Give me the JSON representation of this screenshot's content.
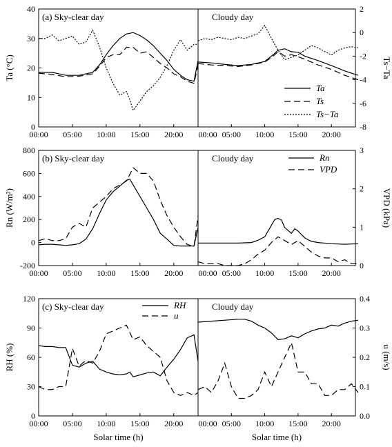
{
  "figure": {
    "xlabel": "Solar time (h)",
    "panels": [
      {
        "id": "a",
        "left_title": "(a) Sky-clear day",
        "right_title": "Cloudy day",
        "ylabel_left": "Ta (°C)",
        "ylabel_right": "Ts−Ta",
        "yticks_left": [
          "0",
          "10",
          "20",
          "30",
          "40"
        ],
        "yticks_right": [
          "-8",
          "-6",
          "-4",
          "-2",
          "0",
          "2"
        ],
        "xticks_left": [
          "00:00",
          "05:00",
          "10:00",
          "15:00",
          "20:00"
        ],
        "xticks_right": [
          "00:00",
          "05:00",
          "10:00",
          "15:00",
          "20:00"
        ],
        "legend": [
          "Ta",
          "Ts",
          "Ts−Ta"
        ]
      },
      {
        "id": "b",
        "left_title": "(b)  Sky-clear day",
        "right_title": "Cloudy day",
        "ylabel_left": "Rn (W/m²)",
        "ylabel_right": "VPD (kPa)",
        "yticks_left": [
          "-200",
          "0",
          "200",
          "400",
          "600",
          "800"
        ],
        "yticks_right": [
          "0",
          "1",
          "2",
          "3"
        ],
        "xticks_left": [
          "00:00",
          "05:00",
          "10:00",
          "15:00",
          "20:00"
        ],
        "xticks_right": [
          "00:00",
          "05:00",
          "10:00",
          "15:00",
          "20:00"
        ],
        "legend": [
          "Rn",
          "VPD"
        ]
      },
      {
        "id": "c",
        "left_title": "(c) Sky-clear day",
        "right_title": "Cloudy day",
        "ylabel_left": "RH (%)",
        "ylabel_right": "u (m/s)",
        "yticks_left": [
          "0",
          "30",
          "60",
          "90",
          "120"
        ],
        "yticks_right": [
          "0.0",
          "0.1",
          "0.2",
          "0.3",
          "0.4"
        ],
        "xticks_left": [
          "00:00",
          "05:00",
          "10:00",
          "15:00",
          "20:00"
        ],
        "xticks_right": [
          "00:00",
          "05:00",
          "10:00",
          "15:00",
          "20:00"
        ],
        "legend": [
          "RH",
          "u"
        ]
      }
    ]
  },
  "chart_data": [
    {
      "panel": "a",
      "type": "line",
      "x_unit": "solar hour",
      "left_axis": {
        "label": "Ta (°C)",
        "ylim": [
          0,
          40
        ]
      },
      "right_axis": {
        "label": "Ts−Ta",
        "ylim": [
          -8,
          2
        ]
      },
      "clear": {
        "Ta": {
          "axis": "left",
          "style": "solid",
          "x": [
            0,
            2,
            4,
            6,
            8,
            9,
            10,
            11,
            12,
            13,
            14,
            15,
            16,
            17,
            18,
            19,
            20,
            21,
            22,
            23,
            23.6
          ],
          "y": [
            18.5,
            18.5,
            17.5,
            17.5,
            18.5,
            21,
            24.5,
            27.5,
            30,
            31.5,
            32,
            31,
            29.5,
            27.5,
            25,
            22.5,
            19.5,
            17.5,
            16,
            15.5,
            22.5
          ]
        },
        "Ts": {
          "axis": "left",
          "style": "dashed",
          "x": [
            0,
            2,
            4,
            6,
            8,
            9,
            10,
            11,
            12,
            13,
            14,
            15,
            16,
            17,
            18,
            19,
            20,
            21,
            22,
            23,
            23.6
          ],
          "y": [
            18.2,
            17.8,
            17,
            17.2,
            18,
            20.5,
            23.5,
            24.5,
            24.5,
            27,
            27,
            25,
            25.5,
            23.5,
            21.5,
            20,
            18,
            17,
            15.5,
            14.8,
            21
          ]
        },
        "Ts_minus_Ta": {
          "axis": "right",
          "style": "dotted",
          "x": [
            0,
            1,
            2,
            3,
            4,
            5,
            6,
            7,
            8,
            9,
            10,
            11,
            12,
            13,
            13.5,
            14,
            15,
            16,
            17,
            18,
            19,
            20,
            21,
            22,
            23,
            23.6
          ],
          "y": [
            -0.5,
            -0.5,
            -0.2,
            -0.7,
            -0.5,
            -0.3,
            -1.0,
            -0.8,
            0.2,
            -1.2,
            -3.0,
            -4.3,
            -5.3,
            -5.0,
            -5.7,
            -6.6,
            -5.8,
            -5.0,
            -4.5,
            -3.8,
            -2.8,
            -1.5,
            -0.6,
            -1.5,
            -1.0,
            -1.0
          ]
        }
      },
      "cloudy": {
        "Ta": {
          "axis": "left",
          "style": "solid",
          "x": [
            0,
            2,
            4,
            6,
            8,
            10,
            11,
            12,
            13,
            14,
            15,
            16,
            18,
            20,
            22,
            24
          ],
          "y": [
            22,
            21.7,
            21.2,
            20.8,
            21.2,
            22.2,
            24,
            26,
            26.5,
            25.5,
            25.3,
            24,
            22.5,
            20.8,
            19,
            17.5
          ]
        },
        "Ts": {
          "axis": "left",
          "style": "dashed",
          "x": [
            0,
            2,
            4,
            6,
            8,
            10,
            11,
            12,
            13,
            14,
            15,
            16,
            18,
            20,
            22,
            24
          ],
          "y": [
            21.5,
            21,
            20.8,
            20.5,
            21,
            22,
            23.5,
            25.5,
            24,
            24.5,
            23.8,
            23,
            21,
            19.5,
            17.5,
            16
          ]
        },
        "Ts_minus_Ta": {
          "axis": "right",
          "style": "dotted",
          "x": [
            0,
            1,
            2,
            3,
            4,
            5,
            6,
            7,
            8,
            9,
            10,
            11,
            12,
            13,
            14,
            15,
            16,
            17,
            18,
            19,
            20,
            21,
            22,
            23,
            24
          ],
          "y": [
            -0.7,
            -0.5,
            -0.6,
            -0.4,
            -0.5,
            -0.6,
            -0.4,
            -0.5,
            -0.3,
            -0.1,
            0.6,
            -0.5,
            -1.5,
            -2.3,
            -2.1,
            -1.9,
            -1.5,
            -1.1,
            -1.3,
            -1.6,
            -1.9,
            -1.5,
            -1.3,
            -1.2,
            -1.3
          ]
        }
      }
    },
    {
      "panel": "b",
      "type": "line",
      "x_unit": "solar hour",
      "left_axis": {
        "label": "Rn (W/m²)",
        "ylim": [
          -200,
          800
        ]
      },
      "right_axis": {
        "label": "VPD (kPa)",
        "ylim": [
          0,
          3
        ]
      },
      "clear": {
        "Rn": {
          "axis": "left",
          "style": "solid",
          "x": [
            0,
            1,
            2,
            3,
            4,
            5,
            6,
            7,
            8,
            9,
            10,
            11,
            12,
            13,
            13.5,
            14,
            15,
            16,
            17,
            18,
            19,
            20,
            21,
            22,
            23,
            23.6
          ],
          "y": [
            -20,
            -15,
            -15,
            -20,
            -25,
            -20,
            -10,
            30,
            120,
            250,
            370,
            440,
            490,
            540,
            550,
            500,
            400,
            300,
            200,
            80,
            30,
            -25,
            -30,
            -30,
            -30,
            130
          ]
        },
        "VPD": {
          "axis": "right",
          "style": "dashed",
          "x": [
            0,
            1,
            2,
            3,
            4,
            5,
            6,
            7,
            8,
            9,
            10,
            11,
            12,
            13,
            14,
            15,
            16,
            17,
            18,
            19,
            20,
            21,
            22,
            23,
            23.6
          ],
          "y": [
            0.65,
            0.7,
            0.65,
            0.65,
            0.7,
            1.0,
            1.1,
            1.0,
            1.5,
            1.65,
            1.8,
            2.0,
            2.1,
            2.2,
            2.55,
            2.4,
            2.4,
            2.2,
            1.7,
            1.3,
            1.0,
            0.75,
            0.55,
            0.5,
            1.3
          ]
        }
      },
      "cloudy": {
        "Rn": {
          "axis": "left",
          "style": "solid",
          "x": [
            0,
            2,
            4,
            6,
            8,
            9,
            10,
            11,
            11.5,
            12,
            12.5,
            13,
            14,
            14.5,
            15,
            16,
            17,
            18,
            20,
            22,
            24
          ],
          "y": [
            -5,
            -5,
            -5,
            -5,
            0,
            20,
            50,
            150,
            200,
            210,
            195,
            130,
            80,
            120,
            100,
            40,
            10,
            0,
            -10,
            -15,
            -10
          ]
        },
        "VPD": {
          "axis": "right",
          "style": "dashed",
          "x": [
            0,
            1,
            2,
            3,
            4,
            5,
            6,
            7,
            8,
            9,
            10,
            11,
            12,
            13,
            14,
            15,
            16,
            17,
            18,
            19,
            20,
            21,
            22,
            23,
            24
          ],
          "y": [
            0.1,
            0.05,
            0.05,
            0.05,
            0.0,
            0.0,
            0.0,
            0.05,
            0.15,
            0.3,
            0.4,
            0.6,
            0.75,
            0.65,
            0.55,
            0.65,
            0.5,
            0.35,
            0.25,
            0.2,
            0.2,
            0.1,
            0.15,
            0.05,
            0.05
          ]
        }
      }
    },
    {
      "panel": "c",
      "type": "line",
      "x_unit": "solar hour",
      "left_axis": {
        "label": "RH (%)",
        "ylim": [
          0,
          120
        ]
      },
      "right_axis": {
        "label": "u (m/s)",
        "ylim": [
          0,
          0.4
        ]
      },
      "clear": {
        "RH": {
          "axis": "left",
          "style": "solid",
          "x": [
            0,
            1,
            2,
            3,
            4,
            5,
            6,
            7,
            8,
            9,
            10,
            11,
            12,
            13,
            13.5,
            14,
            15,
            16,
            17,
            18,
            19,
            20,
            21,
            22,
            23,
            23.6
          ],
          "y": [
            72,
            71,
            71,
            70,
            70,
            52,
            50,
            54,
            56,
            48,
            45,
            43,
            42,
            43,
            45,
            40,
            42,
            44,
            45,
            41,
            50,
            58,
            68,
            80,
            83,
            56
          ]
        },
        "u": {
          "axis": "right",
          "style": "dashed",
          "x": [
            0,
            1,
            2,
            3,
            4,
            5,
            6,
            7,
            8,
            9,
            10,
            11,
            12,
            13,
            14,
            15,
            16,
            17,
            18,
            19,
            20,
            21,
            22,
            23,
            23.6
          ],
          "y": [
            0.1,
            0.09,
            0.09,
            0.1,
            0.1,
            0.23,
            0.17,
            0.19,
            0.18,
            0.22,
            0.28,
            0.29,
            0.3,
            0.31,
            0.26,
            0.27,
            0.24,
            0.22,
            0.2,
            0.12,
            0.08,
            0.07,
            0.08,
            0.07,
            0.08
          ]
        }
      },
      "cloudy": {
        "RH": {
          "axis": "left",
          "style": "solid",
          "x": [
            0,
            2,
            4,
            6,
            7,
            8,
            9,
            10,
            11,
            12,
            13,
            14,
            15,
            16,
            17,
            18,
            19,
            20,
            21,
            22,
            23,
            24
          ],
          "y": [
            96,
            97,
            98,
            99,
            99,
            97,
            93,
            90,
            85,
            78,
            79,
            82,
            80,
            84,
            87,
            89,
            90,
            93,
            92,
            95,
            97,
            98
          ]
        },
        "u": {
          "axis": "right",
          "style": "dashed",
          "x": [
            0,
            1,
            2,
            3,
            4,
            5,
            6,
            7,
            8,
            9,
            10,
            11,
            12,
            13,
            14,
            15,
            16,
            17,
            18,
            19,
            20,
            21,
            22,
            23,
            24
          ],
          "y": [
            0.09,
            0.1,
            0.08,
            0.12,
            0.18,
            0.1,
            0.06,
            0.06,
            0.07,
            0.09,
            0.15,
            0.1,
            0.15,
            0.2,
            0.25,
            0.15,
            0.15,
            0.11,
            0.11,
            0.07,
            0.07,
            0.09,
            0.09,
            0.11,
            0.08
          ]
        }
      }
    }
  ]
}
